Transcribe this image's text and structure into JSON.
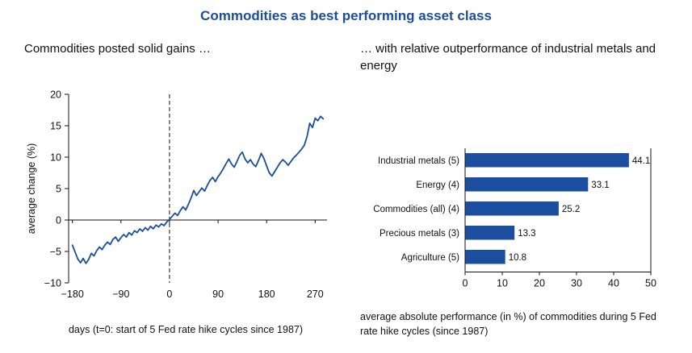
{
  "title": "Commodities as best performing asset class",
  "colors": {
    "accent": "#1b4e9e",
    "axis": "#111111"
  },
  "left_panel": {
    "subtitle": "Commodities posted solid gains …"
  },
  "right_panel": {
    "subtitle": "… with relative outperformance of industrial metals and energy",
    "caption": "average absolute performance (in %) of commodities during 5 Fed rate hike cycles (since 1987)"
  },
  "chart_data": [
    {
      "type": "line",
      "title": "Commodities posted solid gains …",
      "xlabel": "days (t=0: start of 5 Fed rate hike cycles since 1987)",
      "ylabel": "average change (%)",
      "xlim": [
        -187,
        292
      ],
      "ylim": [
        -10,
        20
      ],
      "xticks": [
        -180,
        -90,
        0,
        90,
        180,
        270
      ],
      "yticks": [
        -10,
        -5,
        0,
        5,
        10,
        15,
        20
      ],
      "annotations": [
        "dashed vertical reference line at t=0"
      ],
      "grid": false,
      "points": [
        [
          -180,
          -4.0
        ],
        [
          -175,
          -5.1
        ],
        [
          -170,
          -6.2
        ],
        [
          -165,
          -6.8
        ],
        [
          -160,
          -6.1
        ],
        [
          -155,
          -6.9
        ],
        [
          -150,
          -6.3
        ],
        [
          -145,
          -5.3
        ],
        [
          -140,
          -5.7
        ],
        [
          -135,
          -4.9
        ],
        [
          -130,
          -4.3
        ],
        [
          -125,
          -4.7
        ],
        [
          -120,
          -4.0
        ],
        [
          -115,
          -3.5
        ],
        [
          -110,
          -3.9
        ],
        [
          -105,
          -3.1
        ],
        [
          -100,
          -2.7
        ],
        [
          -95,
          -3.4
        ],
        [
          -90,
          -2.8
        ],
        [
          -85,
          -2.3
        ],
        [
          -80,
          -2.7
        ],
        [
          -75,
          -2.0
        ],
        [
          -70,
          -2.4
        ],
        [
          -65,
          -1.7
        ],
        [
          -60,
          -2.0
        ],
        [
          -55,
          -1.4
        ],
        [
          -50,
          -1.8
        ],
        [
          -45,
          -1.2
        ],
        [
          -40,
          -1.6
        ],
        [
          -35,
          -1.0
        ],
        [
          -30,
          -1.4
        ],
        [
          -25,
          -0.8
        ],
        [
          -20,
          -1.1
        ],
        [
          -15,
          -0.6
        ],
        [
          -10,
          -0.9
        ],
        [
          -5,
          -0.3
        ],
        [
          0,
          0.1
        ],
        [
          5,
          0.6
        ],
        [
          10,
          1.1
        ],
        [
          15,
          0.7
        ],
        [
          20,
          1.5
        ],
        [
          25,
          2.1
        ],
        [
          30,
          1.6
        ],
        [
          35,
          2.5
        ],
        [
          40,
          3.5
        ],
        [
          45,
          4.7
        ],
        [
          50,
          3.9
        ],
        [
          55,
          4.5
        ],
        [
          60,
          5.1
        ],
        [
          65,
          4.6
        ],
        [
          70,
          5.5
        ],
        [
          75,
          6.3
        ],
        [
          80,
          6.8
        ],
        [
          85,
          6.1
        ],
        [
          90,
          6.9
        ],
        [
          95,
          7.5
        ],
        [
          100,
          8.2
        ],
        [
          105,
          9.0
        ],
        [
          110,
          9.7
        ],
        [
          115,
          8.9
        ],
        [
          120,
          8.4
        ],
        [
          125,
          9.3
        ],
        [
          130,
          10.3
        ],
        [
          135,
          10.8
        ],
        [
          140,
          9.7
        ],
        [
          145,
          9.1
        ],
        [
          150,
          9.6
        ],
        [
          155,
          8.9
        ],
        [
          160,
          8.5
        ],
        [
          165,
          9.5
        ],
        [
          170,
          10.6
        ],
        [
          175,
          9.8
        ],
        [
          180,
          8.6
        ],
        [
          185,
          7.5
        ],
        [
          190,
          7.0
        ],
        [
          195,
          7.7
        ],
        [
          200,
          8.4
        ],
        [
          205,
          9.1
        ],
        [
          210,
          9.6
        ],
        [
          215,
          9.2
        ],
        [
          220,
          8.7
        ],
        [
          225,
          9.3
        ],
        [
          230,
          9.9
        ],
        [
          235,
          10.3
        ],
        [
          240,
          10.8
        ],
        [
          245,
          11.3
        ],
        [
          250,
          11.9
        ],
        [
          255,
          13.3
        ],
        [
          260,
          15.4
        ],
        [
          265,
          14.7
        ],
        [
          270,
          16.2
        ],
        [
          275,
          15.8
        ],
        [
          280,
          16.5
        ],
        [
          285,
          16.1
        ]
      ]
    },
    {
      "type": "bar",
      "orientation": "horizontal",
      "title": "… with relative outperformance of industrial metals and energy",
      "xlabel": "average absolute performance (in %) of commodities during 5 Fed rate hike cycles (since 1987)",
      "categories": [
        "Industrial metals (5)",
        "Energy (4)",
        "Commodities (all) (4)",
        "Precious metals (3)",
        "Agriculture (5)"
      ],
      "values": [
        44.1,
        33.1,
        25.2,
        13.3,
        10.8
      ],
      "xlim": [
        0,
        50
      ],
      "xticks": [
        0,
        10,
        20,
        30,
        40,
        50
      ],
      "value_labels": true,
      "grid": false
    }
  ]
}
